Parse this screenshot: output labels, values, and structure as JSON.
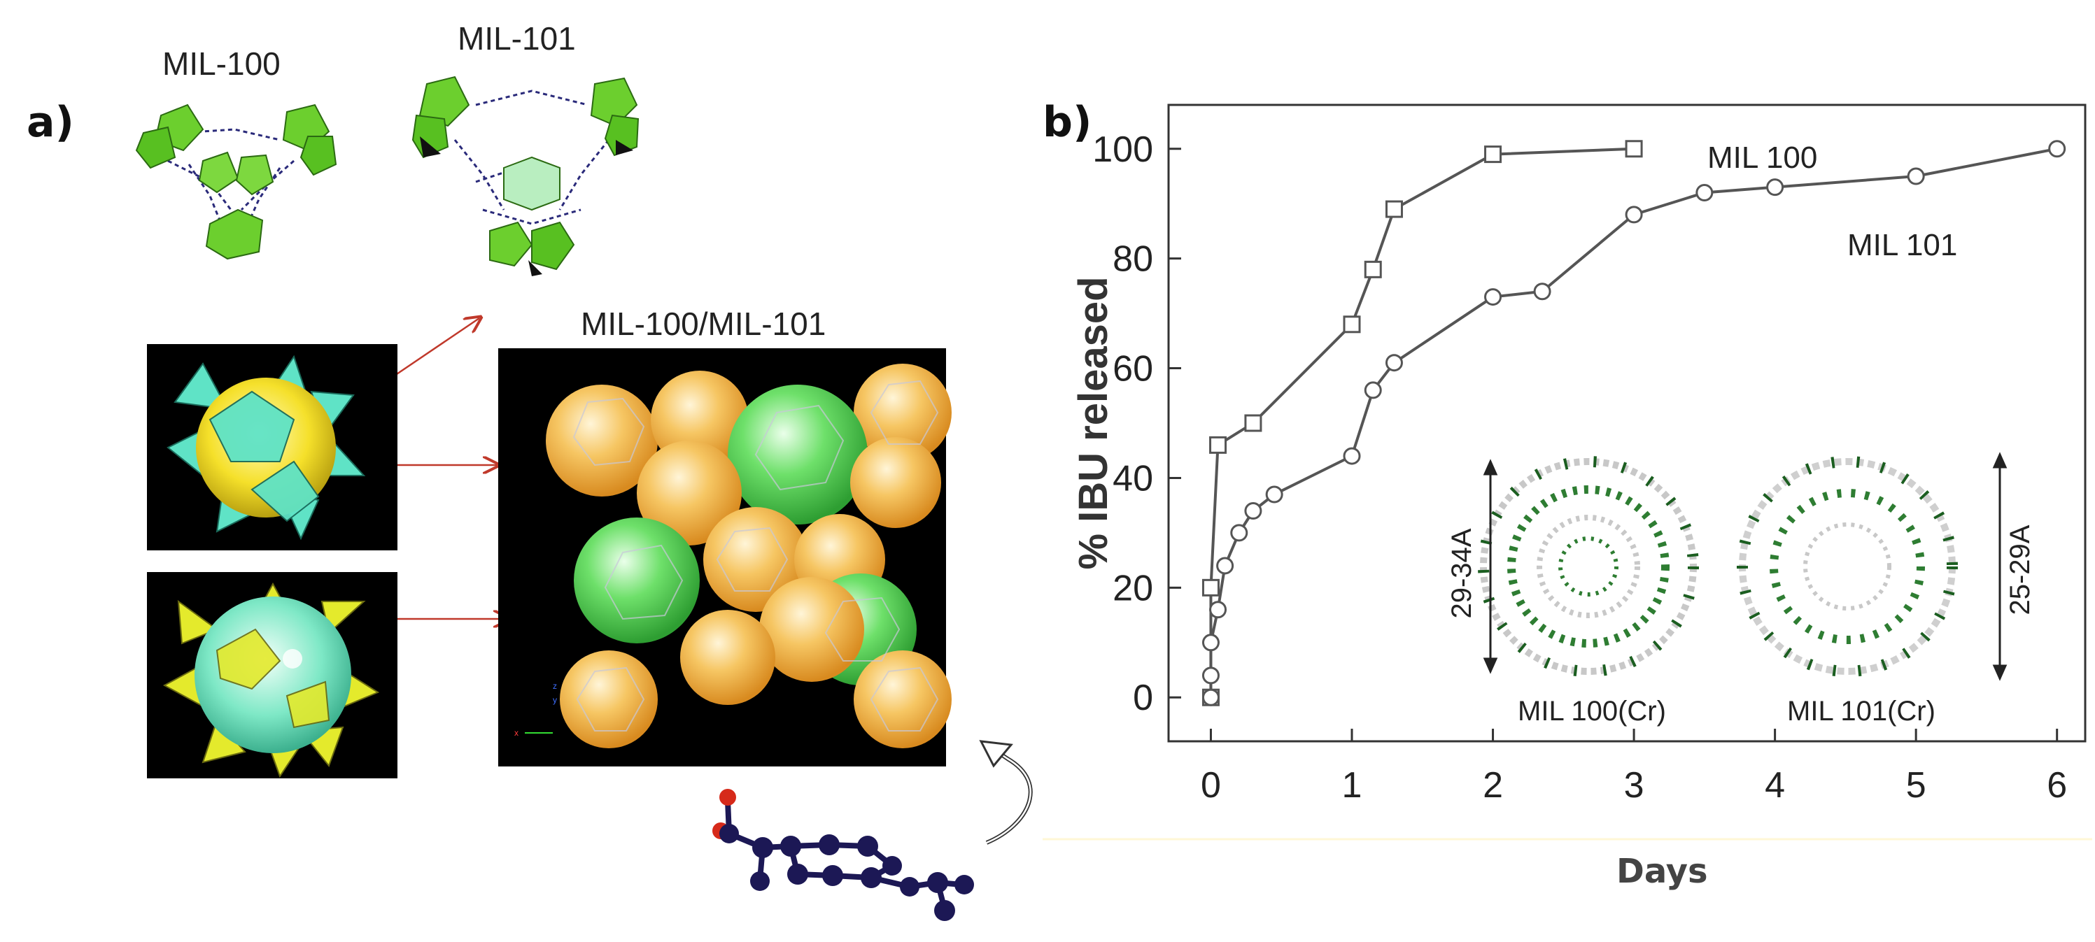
{
  "panel_a": {
    "letter": "a)",
    "labels": {
      "mil100": "MIL-100",
      "mil101": "MIL-101",
      "combined": "MIL-100/MIL-101"
    }
  },
  "panel_b": {
    "letter": "b)"
  },
  "chart_data": {
    "type": "line",
    "xlabel": "Days",
    "ylabel": "% IBU released",
    "xlim": [
      -0.3,
      6.2
    ],
    "ylim": [
      -8,
      108
    ],
    "x_ticks": [
      0,
      1,
      2,
      3,
      4,
      5,
      6
    ],
    "y_ticks": [
      0,
      20,
      40,
      60,
      80,
      100
    ],
    "grid": false,
    "series": [
      {
        "name": "MIL 100",
        "marker": "square",
        "points": [
          [
            0,
            0
          ],
          [
            0,
            20
          ],
          [
            0.05,
            46
          ],
          [
            0.3,
            50
          ],
          [
            1,
            68
          ],
          [
            1.15,
            78
          ],
          [
            1.3,
            89
          ],
          [
            2,
            99
          ],
          [
            3,
            100
          ]
        ]
      },
      {
        "name": "MIL 101",
        "marker": "circle",
        "points": [
          [
            0,
            0
          ],
          [
            0,
            4
          ],
          [
            0,
            10
          ],
          [
            0.05,
            16
          ],
          [
            0.1,
            24
          ],
          [
            0.2,
            30
          ],
          [
            0.3,
            34
          ],
          [
            0.45,
            37
          ],
          [
            1,
            44
          ],
          [
            1.15,
            56
          ],
          [
            1.3,
            61
          ],
          [
            2,
            73
          ],
          [
            2.35,
            74
          ],
          [
            3,
            88
          ],
          [
            3.5,
            92
          ],
          [
            4,
            93
          ],
          [
            5,
            95
          ],
          [
            6,
            100
          ]
        ]
      }
    ],
    "annotations": {
      "inset_left_dimension": "29-34A",
      "inset_right_dimension": "25-29A",
      "inset_left_caption": "MIL 100(Cr)",
      "inset_right_caption": "MIL 101(Cr)"
    }
  },
  "colors": {
    "line": "#555555",
    "green_polyhedra": "#6ccf2e",
    "cyan_polyhedra": "#60e6c4",
    "yellow_sphere": "#f0d520",
    "orange_sphere": "#f3b44a",
    "arrow": "#c0392b",
    "molecule": "#1c1855"
  }
}
